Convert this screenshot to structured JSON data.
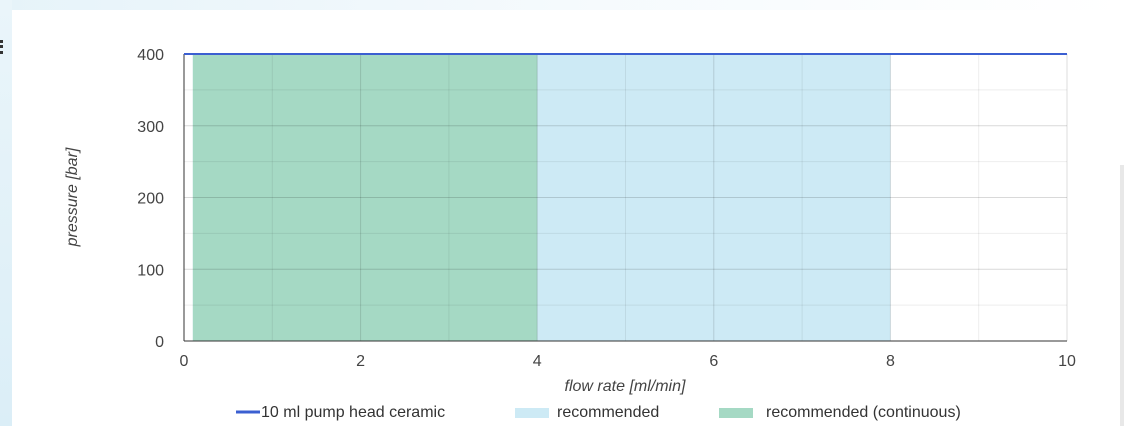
{
  "chart_data": {
    "type": "area",
    "xlabel": "flow rate [ml/min]",
    "ylabel": "pressure [bar]",
    "xlim": [
      0,
      10
    ],
    "ylim": [
      0,
      400
    ],
    "x_ticks": [
      0,
      2,
      4,
      6,
      8,
      10
    ],
    "y_ticks": [
      0,
      100,
      200,
      300,
      400
    ],
    "grid": true,
    "legend_position": "bottom",
    "series": [
      {
        "name": "10 ml pump head ceramic",
        "kind": "line",
        "color": "#3b5fd1",
        "x": [
          0,
          10
        ],
        "y": [
          400,
          400
        ]
      },
      {
        "name": "recommended",
        "kind": "region",
        "color": "#cdeaf5",
        "x_range": [
          0.1,
          8
        ],
        "y_range": [
          0,
          400
        ]
      },
      {
        "name": "recommended (continuous)",
        "kind": "region",
        "color": "#a5d9c4",
        "x_range": [
          0.1,
          4
        ],
        "y_range": [
          0,
          400
        ]
      }
    ]
  }
}
